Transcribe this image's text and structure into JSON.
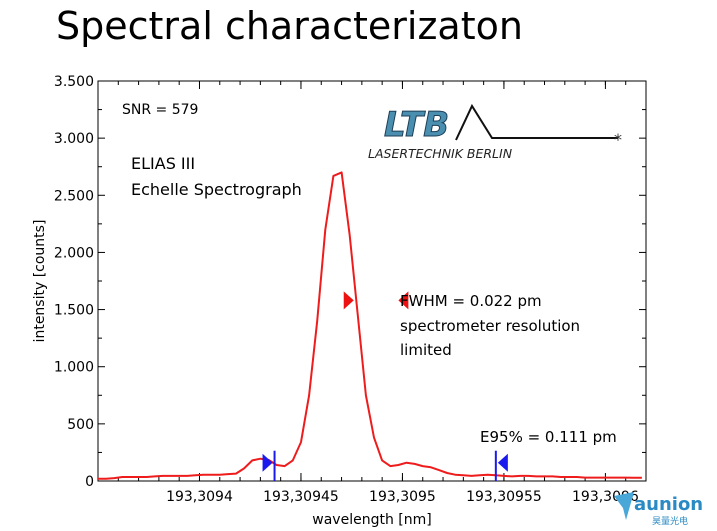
{
  "slide": {
    "title": "Spectral characterizaton"
  },
  "chart_data": {
    "type": "line",
    "xlabel": "wavelength [nm]",
    "ylabel": "intensity [counts]",
    "xlim": [
      193.30935,
      193.30962
    ],
    "ylim": [
      0,
      3500
    ],
    "x_ticks": [
      {
        "value": 193.3094,
        "label": "193,3094"
      },
      {
        "value": 193.30945,
        "label": "193,30945"
      },
      {
        "value": 193.3095,
        "label": "193,3095"
      },
      {
        "value": 193.30955,
        "label": "193,30955"
      },
      {
        "value": 193.3096,
        "label": "193,3096"
      }
    ],
    "y_ticks": [
      {
        "value": 0,
        "label": "0"
      },
      {
        "value": 500,
        "label": "500"
      },
      {
        "value": 1000,
        "label": "1.000"
      },
      {
        "value": 1500,
        "label": "1.500"
      },
      {
        "value": 2000,
        "label": "2.000"
      },
      {
        "value": 2500,
        "label": "2.500"
      },
      {
        "value": 3000,
        "label": "3.000"
      },
      {
        "value": 3500,
        "label": "3.500"
      }
    ],
    "series": [
      {
        "color": "#ee1c1c",
        "x": [
          193.30935,
          193.309354,
          193.309358,
          193.309362,
          193.309366,
          193.30937,
          193.309374,
          193.309378,
          193.309382,
          193.309386,
          193.30939,
          193.309394,
          193.309398,
          193.309402,
          193.309406,
          193.30941,
          193.309414,
          193.309418,
          193.309422,
          193.309426,
          193.30943,
          193.309434,
          193.309438,
          193.309442,
          193.309446,
          193.30945,
          193.309454,
          193.309458,
          193.309462,
          193.309466,
          193.30947,
          193.309474,
          193.309478,
          193.309482,
          193.309486,
          193.30949,
          193.309494,
          193.309498,
          193.309502,
          193.309506,
          193.30951,
          193.309514,
          193.309518,
          193.309522,
          193.309526,
          193.30953,
          193.309534,
          193.309538,
          193.309542,
          193.309546,
          193.30955,
          193.309554,
          193.309558,
          193.309562,
          193.309566,
          193.30957,
          193.309574,
          193.309578,
          193.309582,
          193.309586,
          193.30959,
          193.309594,
          193.309598,
          193.309602,
          193.309606,
          193.30961,
          193.309614,
          193.309618
        ],
        "y": [
          20,
          20,
          25,
          35,
          35,
          35,
          35,
          40,
          45,
          45,
          45,
          45,
          50,
          55,
          55,
          55,
          60,
          65,
          110,
          180,
          195,
          185,
          140,
          130,
          180,
          340,
          750,
          1400,
          2200,
          2670,
          2700,
          2150,
          1450,
          750,
          380,
          180,
          130,
          140,
          160,
          150,
          130,
          120,
          95,
          70,
          55,
          50,
          45,
          50,
          55,
          50,
          45,
          40,
          45,
          45,
          40,
          40,
          40,
          35,
          35,
          35,
          30,
          30,
          30,
          30,
          30,
          30,
          28,
          28
        ]
      }
    ],
    "annotations": {
      "snr": "SNR = 579",
      "instrument_line1": "ELIAS III",
      "instrument_line2": "Echelle Spectrograph",
      "fwhm_line1": "FWHM = 0.022 pm",
      "fwhm_line2": "spectrometer resolution",
      "fwhm_line3": "limited",
      "e95": "E95% = 0.111 pm"
    },
    "markers": {
      "fwhm_color": "#ee1111",
      "e95_color": "#1a1aee",
      "fwhm_level": 1580,
      "fwhm_left_x": 193.309476,
      "fwhm_right_x": 193.309498,
      "e95_level": 160,
      "e95_left_x": 193.309436,
      "e95_right_x": 193.309547
    },
    "grid": false
  },
  "logo": {
    "text_top": "LTB",
    "text_bottom": "LASERTECHNIK BERLIN"
  },
  "brand": {
    "name": "aunion",
    "sub": "昊量光电"
  }
}
